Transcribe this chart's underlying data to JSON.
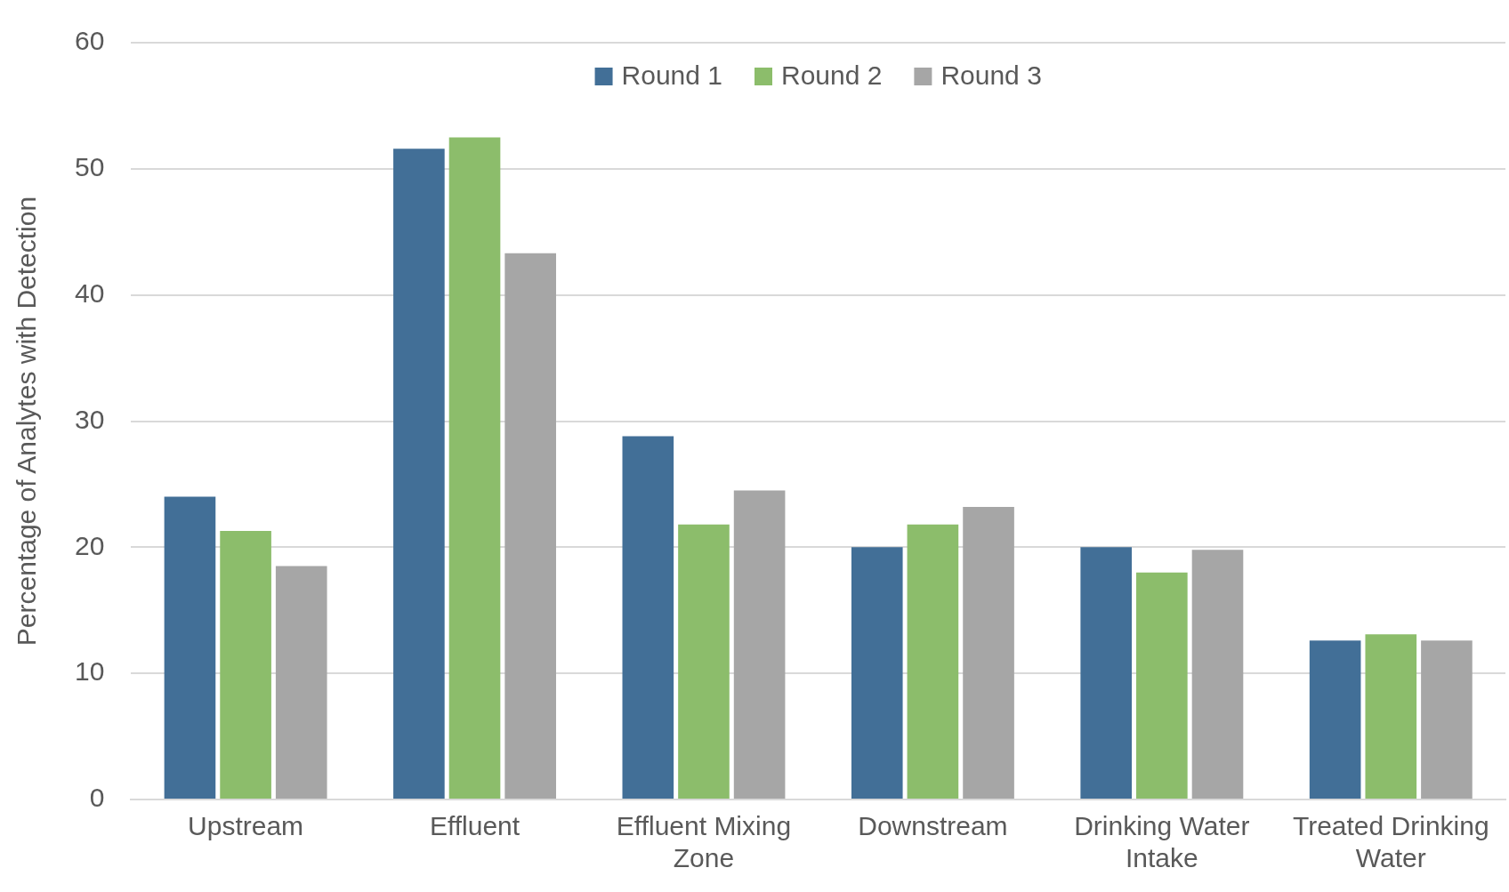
{
  "chart_data": {
    "type": "bar",
    "ylabel": "Percentage of Analytes with Detection",
    "categories": [
      "Upstream",
      "Effluent",
      "Effluent Mixing Zone",
      "Downstream",
      "Drinking Water Intake",
      "Treated Drinking Water"
    ],
    "series": [
      {
        "name": "Round 1",
        "color": "#426f97",
        "values": [
          24.0,
          51.6,
          28.8,
          20.0,
          20.0,
          12.6
        ]
      },
      {
        "name": "Round 2",
        "color": "#8cbd6b",
        "values": [
          21.3,
          52.5,
          21.8,
          21.8,
          18.0,
          13.1
        ]
      },
      {
        "name": "Round 3",
        "color": "#a6a6a6",
        "values": [
          18.5,
          43.3,
          24.5,
          23.2,
          19.8,
          12.6
        ]
      }
    ],
    "ylim": [
      0,
      60
    ],
    "yticks": [
      0,
      10,
      20,
      30,
      40,
      50,
      60
    ],
    "grid": "y",
    "legend": "top"
  }
}
